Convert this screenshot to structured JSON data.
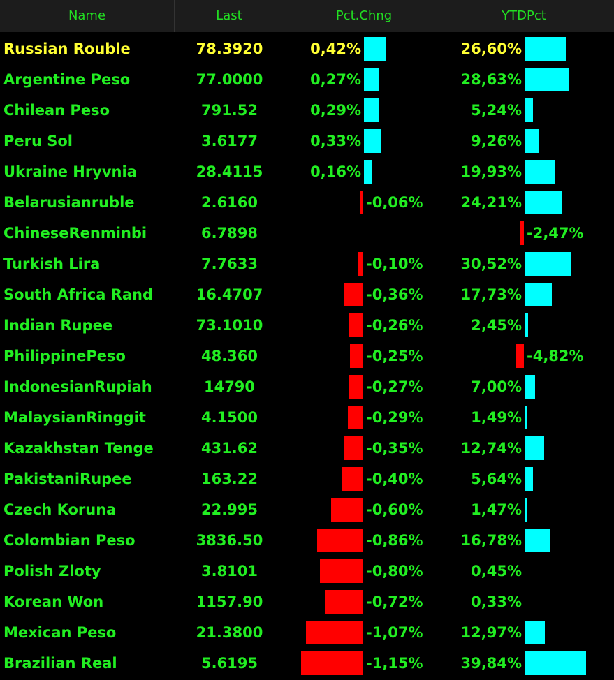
{
  "table": {
    "columns": [
      "Name",
      "Last",
      "Pct.Chng",
      "YTDPct"
    ],
    "rows": [
      {
        "name": "Russian Rouble",
        "last": "78.3920",
        "pct": 0.42,
        "pct_label": "0,42%",
        "ytd": 26.6,
        "ytd_label": "26,60%"
      },
      {
        "name": "Argentine Peso",
        "last": "77.0000",
        "pct": 0.27,
        "pct_label": "0,27%",
        "ytd": 28.63,
        "ytd_label": "28,63%"
      },
      {
        "name": "Chilean Peso",
        "last": "791.52",
        "pct": 0.29,
        "pct_label": "0,29%",
        "ytd": 5.24,
        "ytd_label": "5,24%"
      },
      {
        "name": "Peru Sol",
        "last": "3.6177",
        "pct": 0.33,
        "pct_label": "0,33%",
        "ytd": 9.26,
        "ytd_label": "9,26%"
      },
      {
        "name": "Ukraine Hryvnia",
        "last": "28.4115",
        "pct": 0.16,
        "pct_label": "0,16%",
        "ytd": 19.93,
        "ytd_label": "19,93%"
      },
      {
        "name": "Belarusianruble",
        "last": "2.6160",
        "pct": -0.06,
        "pct_label": "-0,06%",
        "ytd": 24.21,
        "ytd_label": "24,21%"
      },
      {
        "name": "ChineseRenminbi",
        "last": "6.7898",
        "pct": null,
        "pct_label": null,
        "ytd": -2.47,
        "ytd_label": "-2,47%"
      },
      {
        "name": "Turkish Lira",
        "last": "7.7633",
        "pct": -0.1,
        "pct_label": "-0,10%",
        "ytd": 30.52,
        "ytd_label": "30,52%"
      },
      {
        "name": "South Africa Rand",
        "last": "16.4707",
        "pct": -0.36,
        "pct_label": "-0,36%",
        "ytd": 17.73,
        "ytd_label": "17,73%"
      },
      {
        "name": "Indian Rupee",
        "last": "73.1010",
        "pct": -0.26,
        "pct_label": "-0,26%",
        "ytd": 2.45,
        "ytd_label": "2,45%"
      },
      {
        "name": "PhilippinePeso",
        "last": "48.360",
        "pct": -0.25,
        "pct_label": "-0,25%",
        "ytd": -4.82,
        "ytd_label": "-4,82%"
      },
      {
        "name": "IndonesianRupiah",
        "last": "14790",
        "pct": -0.27,
        "pct_label": "-0,27%",
        "ytd": 7.0,
        "ytd_label": "7,00%"
      },
      {
        "name": "MalaysianRinggit",
        "last": "4.1500",
        "pct": -0.29,
        "pct_label": "-0,29%",
        "ytd": 1.49,
        "ytd_label": "1,49%"
      },
      {
        "name": "Kazakhstan Tenge",
        "last": "431.62",
        "pct": -0.35,
        "pct_label": "-0,35%",
        "ytd": 12.74,
        "ytd_label": "12,74%"
      },
      {
        "name": "PakistaniRupee",
        "last": "163.22",
        "pct": -0.4,
        "pct_label": "-0,40%",
        "ytd": 5.64,
        "ytd_label": "5,64%"
      },
      {
        "name": "Czech Koruna",
        "last": "22.995",
        "pct": -0.6,
        "pct_label": "-0,60%",
        "ytd": 1.47,
        "ytd_label": "1,47%"
      },
      {
        "name": "Colombian Peso",
        "last": "3836.50",
        "pct": -0.86,
        "pct_label": "-0,86%",
        "ytd": 16.78,
        "ytd_label": "16,78%"
      },
      {
        "name": "Polish Zloty",
        "last": "3.8101",
        "pct": -0.8,
        "pct_label": "-0,80%",
        "ytd": 0.45,
        "ytd_label": "0,45%"
      },
      {
        "name": "Korean Won",
        "last": "1157.90",
        "pct": -0.72,
        "pct_label": "-0,72%",
        "ytd": 0.33,
        "ytd_label": "0,33%"
      },
      {
        "name": "Mexican Peso",
        "last": "21.3800",
        "pct": -1.07,
        "pct_label": "-1,07%",
        "ytd": 12.97,
        "ytd_label": "12,97%"
      },
      {
        "name": "Brazilian Real",
        "last": "5.6195",
        "pct": -1.15,
        "pct_label": "-1,15%",
        "ytd": 39.84,
        "ytd_label": "39,84%"
      }
    ]
  }
}
